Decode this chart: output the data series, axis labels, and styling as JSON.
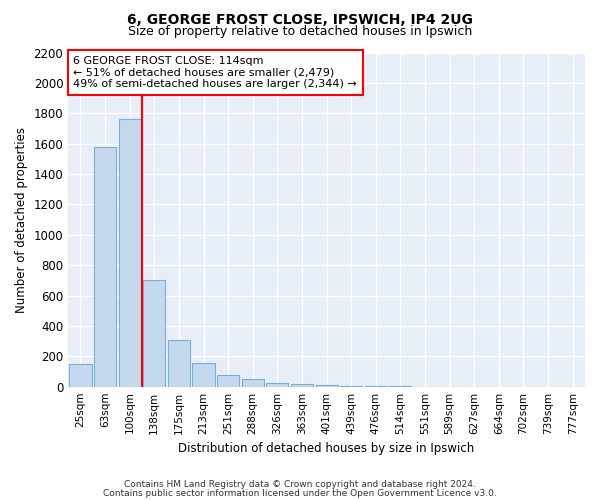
{
  "title1": "6, GEORGE FROST CLOSE, IPSWICH, IP4 2UG",
  "title2": "Size of property relative to detached houses in Ipswich",
  "xlabel": "Distribution of detached houses by size in Ipswich",
  "ylabel": "Number of detached properties",
  "categories": [
    "25sqm",
    "63sqm",
    "100sqm",
    "138sqm",
    "175sqm",
    "213sqm",
    "251sqm",
    "288sqm",
    "326sqm",
    "363sqm",
    "401sqm",
    "439sqm",
    "476sqm",
    "514sqm",
    "551sqm",
    "589sqm",
    "627sqm",
    "664sqm",
    "702sqm",
    "739sqm",
    "777sqm"
  ],
  "values": [
    150,
    1580,
    1760,
    700,
    310,
    155,
    80,
    50,
    25,
    15,
    10,
    5,
    3,
    2,
    1,
    1,
    0,
    0,
    0,
    0,
    0
  ],
  "bar_color": "#c5d9ee",
  "bar_edge_color": "#7aafd4",
  "annotation_text": "6 GEORGE FROST CLOSE: 114sqm\n← 51% of detached houses are smaller (2,479)\n49% of semi-detached houses are larger (2,344) →",
  "annotation_box_color": "white",
  "annotation_box_edge": "red",
  "red_line_x": 2.5,
  "ylim": [
    0,
    2200
  ],
  "yticks": [
    0,
    200,
    400,
    600,
    800,
    1000,
    1200,
    1400,
    1600,
    1800,
    2000,
    2200
  ],
  "background_color": "#e8eef7",
  "grid_color": "#ffffff",
  "footer1": "Contains HM Land Registry data © Crown copyright and database right 2024.",
  "footer2": "Contains public sector information licensed under the Open Government Licence v3.0."
}
